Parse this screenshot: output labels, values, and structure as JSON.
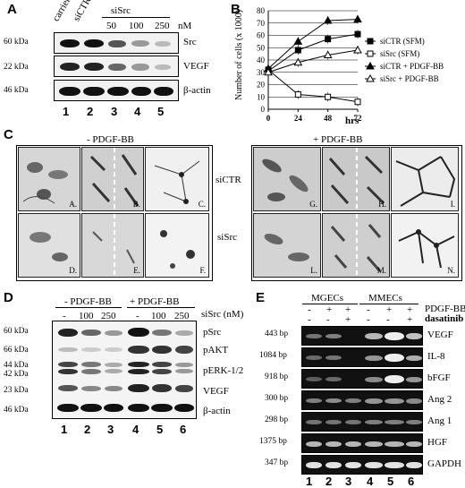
{
  "panel_A": {
    "label": "A",
    "top_labels": [
      "carrier",
      "siCTR",
      "siSrc"
    ],
    "units": "nM",
    "doses": [
      "50",
      "100",
      "250"
    ],
    "mw_markers": [
      "60 kDa",
      "22 kDa",
      "46 kDa"
    ],
    "proteins": [
      "Src",
      "VEGF",
      "β-actin"
    ],
    "lanes": [
      "1",
      "2",
      "3",
      "4",
      "5"
    ]
  },
  "panel_B": {
    "label": "B",
    "xlabel_unit": "hrs",
    "legend": [
      "siCTR (SFM)",
      "siSrc (SFM)",
      "siCTR + PDGF-BB",
      "siSrc + PDGF-BB"
    ],
    "chart_data": {
      "type": "line",
      "x": [
        0,
        24,
        48,
        72
      ],
      "xlabel": "hrs",
      "ylabel": "Number of cells (x 1000)",
      "ylim": [
        0,
        80
      ],
      "yticks": [
        0,
        10,
        20,
        30,
        40,
        50,
        60,
        70,
        80
      ],
      "grid": "horizontal",
      "legend_position": "right",
      "series": [
        {
          "name": "siCTR (SFM)",
          "marker": "filled-square",
          "values": [
            31,
            48,
            57,
            61
          ]
        },
        {
          "name": "siSrc (SFM)",
          "marker": "open-square",
          "values": [
            32,
            12,
            10,
            6
          ]
        },
        {
          "name": "siCTR + PDGF-BB",
          "marker": "filled-triangle",
          "values": [
            33,
            55,
            72,
            73
          ]
        },
        {
          "name": "siSrc + PDGF-BB",
          "marker": "open-triangle",
          "values": [
            30,
            38,
            44,
            48
          ]
        }
      ]
    }
  },
  "panel_C": {
    "label": "C",
    "left_header": "- PDGF-BB",
    "right_header": "+ PDGF-BB",
    "row_labels": [
      "siCTR",
      "siSrc"
    ],
    "image_labels": [
      "A.",
      "B.",
      "C.",
      "D.",
      "E.",
      "F.",
      "G.",
      "H.",
      "I.",
      "L.",
      "M.",
      "N."
    ]
  },
  "panel_D": {
    "label": "D",
    "group_labels": [
      "- PDGF-BB",
      "+ PDGF-BB"
    ],
    "treatment_label": "siSrc (nM)",
    "doses": [
      "-",
      "100",
      "250",
      "-",
      "100",
      "250"
    ],
    "mw_markers": [
      "60 kDa",
      "66 kDa",
      "44 kDa",
      "42 kDa",
      "23 kDa",
      "46 kDa"
    ],
    "proteins": [
      "pSrc",
      "pAKT",
      "pERK-1/2",
      "VEGF",
      "β-actin"
    ],
    "lanes": [
      "1",
      "2",
      "3",
      "4",
      "5",
      "6"
    ]
  },
  "panel_E": {
    "label": "E",
    "groups": [
      "MGECs",
      "MMECs"
    ],
    "row_pdgf": "PDGF-BB",
    "row_dasatinib": "dasatinib",
    "pdgf_signs": [
      "-",
      "+",
      "+",
      "-",
      "+",
      "+"
    ],
    "dasatinib_signs": [
      "-",
      "-",
      "+",
      "-",
      "-",
      "+"
    ],
    "sizes": [
      "443 bp",
      "1084 bp",
      "918 bp",
      "300 bp",
      "298 bp",
      "1375 bp",
      "347 bp"
    ],
    "genes": [
      "VEGF",
      "IL-8",
      "bFGF",
      "Ang 2",
      "Ang 1",
      "HGF",
      "GAPDH"
    ],
    "lanes": [
      "1",
      "2",
      "3",
      "4",
      "5",
      "6"
    ]
  }
}
